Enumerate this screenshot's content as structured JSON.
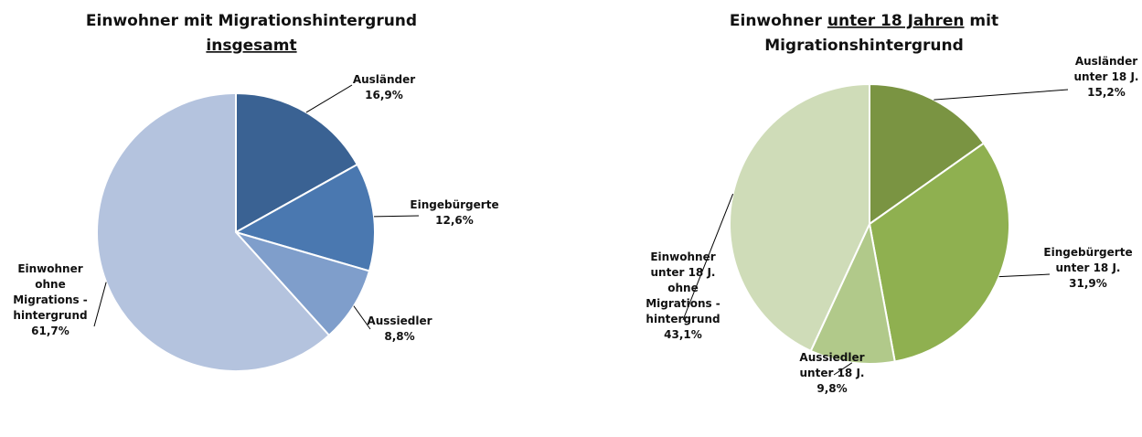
{
  "chart_data": [
    {
      "type": "pie",
      "title": [
        [
          "Einwohner mit Migrationshintergrund"
        ],
        [
          "insgesamt"
        ]
      ],
      "title_underline": [
        [
          false
        ],
        [
          true
        ]
      ],
      "categories": [
        [
          "Ausländer"
        ],
        [
          "Eingebürgerte"
        ],
        [
          "Aussiedler"
        ],
        [
          "Einwohner",
          "ohne",
          "Migrations -",
          "hintergrund"
        ]
      ],
      "values": [
        16.9,
        12.6,
        8.8,
        61.7
      ],
      "value_labels": [
        "16,9%",
        "12,6%",
        "8,8%",
        "61,7%"
      ],
      "colors": [
        "#3a6293",
        "#4a78b0",
        "#7f9ecb",
        "#b4c3de"
      ]
    },
    {
      "type": "pie",
      "title": [
        [
          "Einwohner ",
          "unter 18 Jahren",
          " mit"
        ],
        [
          "Migrationshintergrund"
        ]
      ],
      "title_underline": [
        [
          false,
          true,
          false
        ],
        [
          false
        ]
      ],
      "categories": [
        [
          "Ausländer",
          "unter 18 J."
        ],
        [
          "Eingebürgerte",
          "unter 18 J."
        ],
        [
          "Aussiedler",
          "unter 18 J."
        ],
        [
          "Einwohner",
          "unter 18 J.",
          "ohne",
          "Migrations -",
          "hintergrund"
        ]
      ],
      "values": [
        15.2,
        31.9,
        9.8,
        43.1
      ],
      "value_labels": [
        "15,2%",
        "31,9%",
        "9,8%",
        "43,1%"
      ],
      "colors": [
        "#7a9442",
        "#8fb050",
        "#b1c98a",
        "#cfdcb8"
      ]
    }
  ]
}
